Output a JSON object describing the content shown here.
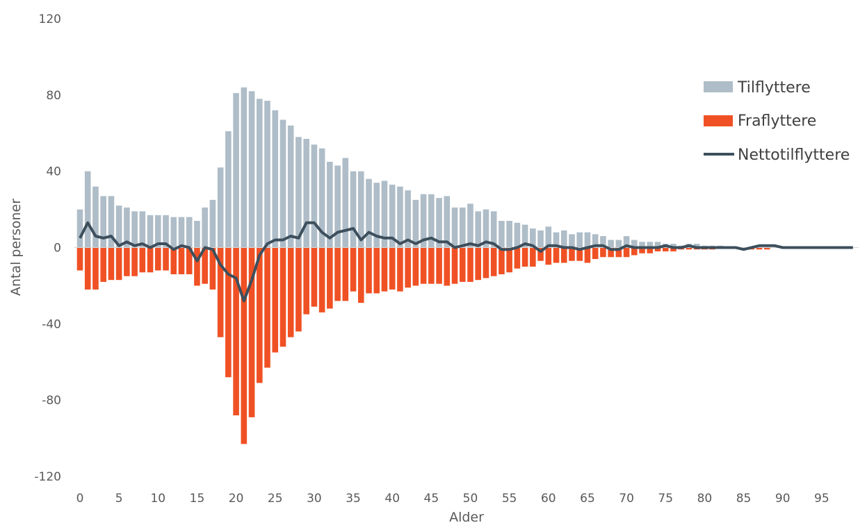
{
  "chart_data": {
    "type": "bar",
    "title": "",
    "xlabel": "Alder",
    "ylabel": "Antal personer",
    "ylim": [
      -120,
      120
    ],
    "yticks": [
      120,
      80,
      40,
      0,
      -40,
      -80,
      -120
    ],
    "xticks": [
      0,
      5,
      10,
      15,
      20,
      25,
      30,
      35,
      40,
      45,
      50,
      55,
      60,
      65,
      70,
      75,
      80,
      85,
      90,
      95
    ],
    "grid": false,
    "legend_position": "top-right",
    "x": [
      0,
      1,
      2,
      3,
      4,
      5,
      6,
      7,
      8,
      9,
      10,
      11,
      12,
      13,
      14,
      15,
      16,
      17,
      18,
      19,
      20,
      21,
      22,
      23,
      24,
      25,
      26,
      27,
      28,
      29,
      30,
      31,
      32,
      33,
      34,
      35,
      36,
      37,
      38,
      39,
      40,
      41,
      42,
      43,
      44,
      45,
      46,
      47,
      48,
      49,
      50,
      51,
      52,
      53,
      54,
      55,
      56,
      57,
      58,
      59,
      60,
      61,
      62,
      63,
      64,
      65,
      66,
      67,
      68,
      69,
      70,
      71,
      72,
      73,
      74,
      75,
      76,
      77,
      78,
      79,
      80,
      81,
      82,
      83,
      84,
      85,
      86,
      87,
      88,
      89,
      90,
      91,
      92,
      93,
      94,
      95,
      96,
      97,
      98,
      99
    ],
    "series": [
      {
        "name": "Tilflyttere",
        "type": "bar",
        "color": "#aebdc8",
        "values": [
          20,
          40,
          32,
          27,
          27,
          22,
          21,
          19,
          19,
          17,
          17,
          17,
          16,
          16,
          16,
          14,
          21,
          25,
          42,
          61,
          81,
          84,
          82,
          78,
          77,
          72,
          67,
          64,
          58,
          57,
          54,
          52,
          45,
          43,
          47,
          40,
          40,
          36,
          34,
          35,
          33,
          32,
          30,
          25,
          28,
          28,
          26,
          27,
          21,
          21,
          23,
          19,
          20,
          19,
          14,
          14,
          13,
          12,
          10,
          9,
          11,
          8,
          9,
          7,
          8,
          8,
          7,
          6,
          4,
          4,
          6,
          4,
          3,
          3,
          3,
          2,
          2,
          1,
          2,
          2,
          1,
          1,
          1,
          0,
          0,
          0,
          0,
          0,
          0,
          0,
          0,
          0,
          0,
          0,
          0,
          0,
          0,
          0,
          0,
          0
        ]
      },
      {
        "name": "Fraflyttere",
        "type": "bar",
        "color": "#f05124",
        "values": [
          -12,
          -22,
          -22,
          -18,
          -17,
          -17,
          -15,
          -15,
          -13,
          -13,
          -12,
          -12,
          -14,
          -14,
          -14,
          -20,
          -19,
          -22,
          -47,
          -68,
          -88,
          -103,
          -89,
          -71,
          -63,
          -55,
          -52,
          -47,
          -44,
          -35,
          -31,
          -34,
          -32,
          -28,
          -28,
          -23,
          -29,
          -24,
          -24,
          -23,
          -22,
          -23,
          -21,
          -20,
          -19,
          -19,
          -19,
          -20,
          -19,
          -18,
          -18,
          -17,
          -16,
          -15,
          -14,
          -13,
          -11,
          -10,
          -10,
          -7,
          -9,
          -8,
          -8,
          -7,
          -7,
          -8,
          -6,
          -5,
          -5,
          -5,
          -5,
          -4,
          -3,
          -3,
          -2,
          -2,
          -2,
          -1,
          -1,
          -1,
          -1,
          -1,
          0,
          0,
          0,
          0,
          -1,
          -1,
          -1,
          0,
          0,
          0,
          0,
          0,
          0,
          0,
          0,
          0,
          0,
          0
        ]
      },
      {
        "name": "Nettotilflyttere",
        "type": "line",
        "color": "#3d4f5c",
        "values": [
          5,
          13,
          6,
          5,
          6,
          1,
          3,
          1,
          2,
          0,
          2,
          2,
          -1,
          1,
          0,
          -7,
          0,
          -1,
          -9,
          -14,
          -16,
          -28,
          -17,
          -4,
          2,
          4,
          4,
          6,
          5,
          13,
          13,
          8,
          5,
          8,
          9,
          10,
          4,
          8,
          6,
          5,
          5,
          2,
          4,
          2,
          4,
          5,
          3,
          3,
          0,
          1,
          2,
          1,
          3,
          2,
          -1,
          -1,
          0,
          2,
          1,
          -2,
          1,
          1,
          0,
          0,
          -1,
          0,
          1,
          1,
          -1,
          -1,
          1,
          0,
          0,
          0,
          0,
          1,
          0,
          0,
          1,
          0,
          0,
          0,
          0,
          0,
          0,
          -1,
          0,
          1,
          1,
          1,
          0,
          0,
          0,
          0,
          0,
          0,
          0,
          0,
          0,
          0
        ]
      }
    ]
  }
}
